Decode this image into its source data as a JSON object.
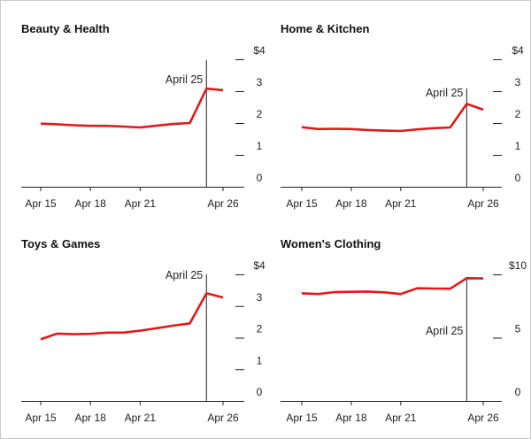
{
  "chart_data": [
    {
      "type": "line",
      "title": "Beauty & Health",
      "x_ticks": [
        "Apr 15",
        "Apr 18",
        "Apr 21",
        "Apr 26"
      ],
      "x": [
        15,
        16,
        17,
        18,
        19,
        20,
        21,
        22,
        23,
        24,
        25,
        26
      ],
      "values": [
        1.98,
        1.96,
        1.93,
        1.91,
        1.91,
        1.89,
        1.86,
        1.92,
        1.97,
        2.0,
        3.08,
        3.03
      ],
      "ylim": [
        0,
        4
      ],
      "y_ticks": [
        "0",
        "1",
        "2",
        "3",
        "$4"
      ],
      "annotation": "April 25",
      "annotation_x": 25,
      "line_color": "#e0191a"
    },
    {
      "type": "line",
      "title": "Home & Kitchen",
      "x_ticks": [
        "Apr 15",
        "Apr 18",
        "Apr 21",
        "Apr 26"
      ],
      "x": [
        15,
        16,
        17,
        18,
        19,
        20,
        21,
        22,
        23,
        24,
        25,
        26
      ],
      "values": [
        1.87,
        1.81,
        1.82,
        1.81,
        1.78,
        1.76,
        1.75,
        1.8,
        1.84,
        1.86,
        2.6,
        2.42
      ],
      "ylim": [
        0,
        4
      ],
      "y_ticks": [
        "0",
        "1",
        "2",
        "3",
        "$4"
      ],
      "annotation": "April 25",
      "annotation_x": 25,
      "line_color": "#e0191a"
    },
    {
      "type": "line",
      "title": "Toys & Games",
      "x_ticks": [
        "Apr 15",
        "Apr 18",
        "Apr 21",
        "Apr 26"
      ],
      "x": [
        15,
        16,
        17,
        18,
        19,
        20,
        21,
        22,
        23,
        24,
        25,
        26
      ],
      "values": [
        1.95,
        2.13,
        2.11,
        2.12,
        2.16,
        2.16,
        2.22,
        2.3,
        2.38,
        2.45,
        3.4,
        3.27
      ],
      "ylim": [
        0,
        4
      ],
      "y_ticks": [
        "0",
        "1",
        "2",
        "3",
        "$4"
      ],
      "annotation": "April 25",
      "annotation_x": 25,
      "line_color": "#e0191a"
    },
    {
      "type": "line",
      "title": "Women's Clothing",
      "x_ticks": [
        "Apr 15",
        "Apr 18",
        "Apr 21",
        "Apr 26"
      ],
      "x": [
        15,
        16,
        17,
        18,
        19,
        20,
        21,
        22,
        23,
        24,
        25,
        26
      ],
      "values": [
        8.5,
        8.45,
        8.6,
        8.62,
        8.64,
        8.58,
        8.45,
        8.9,
        8.88,
        8.87,
        9.7,
        9.68
      ],
      "ylim": [
        0,
        10
      ],
      "y_ticks": [
        "0",
        "5",
        "$10"
      ],
      "annotation": "April 25",
      "annotation_x": 25,
      "line_color": "#e0191a"
    }
  ]
}
